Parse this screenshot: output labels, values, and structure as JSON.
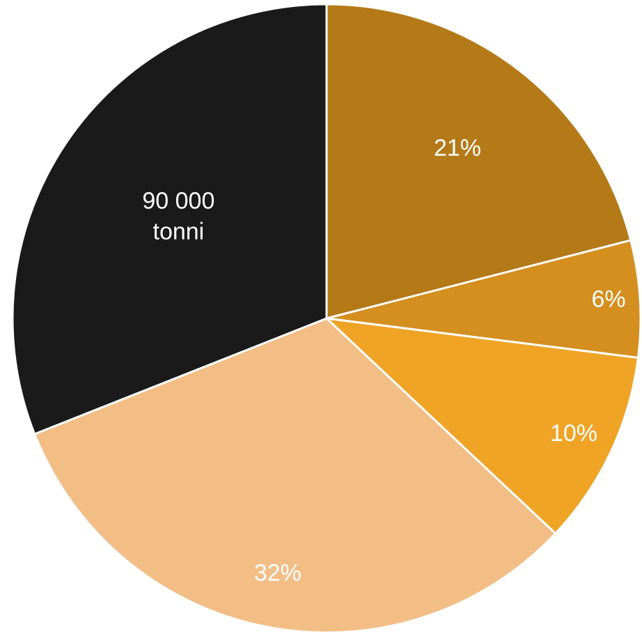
{
  "chart_data": {
    "type": "pie",
    "start_angle_deg": 0,
    "direction": "clockwise",
    "slices": [
      {
        "label_lines": [
          "21%"
        ],
        "value": 21,
        "color": "#b47a18",
        "label_color": "#ffffff"
      },
      {
        "label_lines": [
          "6%"
        ],
        "value": 6,
        "color": "#d48f1f",
        "label_color": "#ffffff"
      },
      {
        "label_lines": [
          "10%"
        ],
        "value": 10,
        "color": "#efa426",
        "label_color": "#ffffff"
      },
      {
        "label_lines": [
          "32%"
        ],
        "value": 32,
        "color": "#f2be86",
        "label_color": "#ffffff"
      },
      {
        "label_lines": [
          "90 000",
          "tonni"
        ],
        "value": 31,
        "color": "#1b1a1b",
        "label_color": "#ffffff"
      }
    ]
  }
}
